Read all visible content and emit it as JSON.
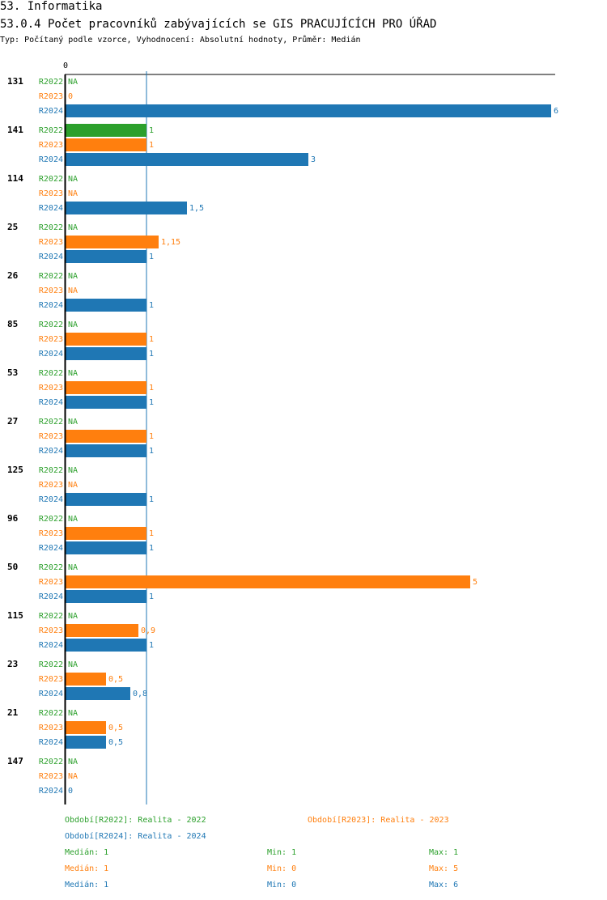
{
  "header": {
    "section": "53. Informatika",
    "title": "53.0.4 Počet pracovníků zabývajících se GIS PRACUJÍCÍCH PRO ÚŘAD",
    "subtitle": "Typ: Počítaný podle vzorce, Vyhodnocení: Absolutní hodnoty, Průměr: Medián"
  },
  "colors": {
    "R2022": "#2ca02c",
    "R2023": "#ff7f0e",
    "R2024": "#1f77b4",
    "axis": "#000000",
    "median_line": "#1f77b4"
  },
  "chart_data": {
    "type": "bar",
    "orientation": "horizontal",
    "x_tick_labels": [
      "0"
    ],
    "xlim": [
      0,
      6
    ],
    "median_line_value": 1,
    "series_keys": [
      "R2022",
      "R2023",
      "R2024"
    ],
    "na_label": "NA",
    "groups": [
      {
        "label": "131",
        "values": [
          null,
          0,
          6
        ],
        "labels": [
          "NA",
          "0",
          "6"
        ]
      },
      {
        "label": "141",
        "values": [
          1,
          1,
          3
        ],
        "labels": [
          "1",
          "1",
          "3"
        ]
      },
      {
        "label": "114",
        "values": [
          null,
          null,
          1.5
        ],
        "labels": [
          "NA",
          "NA",
          "1,5"
        ]
      },
      {
        "label": "25",
        "values": [
          null,
          1.15,
          1
        ],
        "labels": [
          "NA",
          "1,15",
          "1"
        ]
      },
      {
        "label": "26",
        "values": [
          null,
          null,
          1
        ],
        "labels": [
          "NA",
          "NA",
          "1"
        ]
      },
      {
        "label": "85",
        "values": [
          null,
          1,
          1
        ],
        "labels": [
          "NA",
          "1",
          "1"
        ]
      },
      {
        "label": "53",
        "values": [
          null,
          1,
          1
        ],
        "labels": [
          "NA",
          "1",
          "1"
        ]
      },
      {
        "label": "27",
        "values": [
          null,
          1,
          1
        ],
        "labels": [
          "NA",
          "1",
          "1"
        ]
      },
      {
        "label": "125",
        "values": [
          null,
          null,
          1
        ],
        "labels": [
          "NA",
          "NA",
          "1"
        ]
      },
      {
        "label": "96",
        "values": [
          null,
          1,
          1
        ],
        "labels": [
          "NA",
          "1",
          "1"
        ]
      },
      {
        "label": "50",
        "values": [
          null,
          5,
          1
        ],
        "labels": [
          "NA",
          "5",
          "1"
        ]
      },
      {
        "label": "115",
        "values": [
          null,
          0.9,
          1
        ],
        "labels": [
          "NA",
          "0,9",
          "1"
        ]
      },
      {
        "label": "23",
        "values": [
          null,
          0.5,
          0.8
        ],
        "labels": [
          "NA",
          "0,5",
          "0,8"
        ]
      },
      {
        "label": "21",
        "values": [
          null,
          0.5,
          0.5
        ],
        "labels": [
          "NA",
          "0,5",
          "0,5"
        ]
      },
      {
        "label": "147",
        "values": [
          null,
          null,
          0
        ],
        "labels": [
          "NA",
          "NA",
          "0"
        ]
      }
    ]
  },
  "legend": {
    "r2022": "Období[R2022]: Realita - 2022",
    "r2023": "Období[R2023]: Realita - 2023",
    "r2024": "Období[R2024]: Realita - 2024"
  },
  "stats": [
    {
      "median": "Medián: 1",
      "min": "Min: 1",
      "max": "Max: 1"
    },
    {
      "median": "Medián: 1",
      "min": "Min: 0",
      "max": "Max: 5"
    },
    {
      "median": "Medián: 1",
      "min": "Min: 0",
      "max": "Max: 6"
    }
  ]
}
